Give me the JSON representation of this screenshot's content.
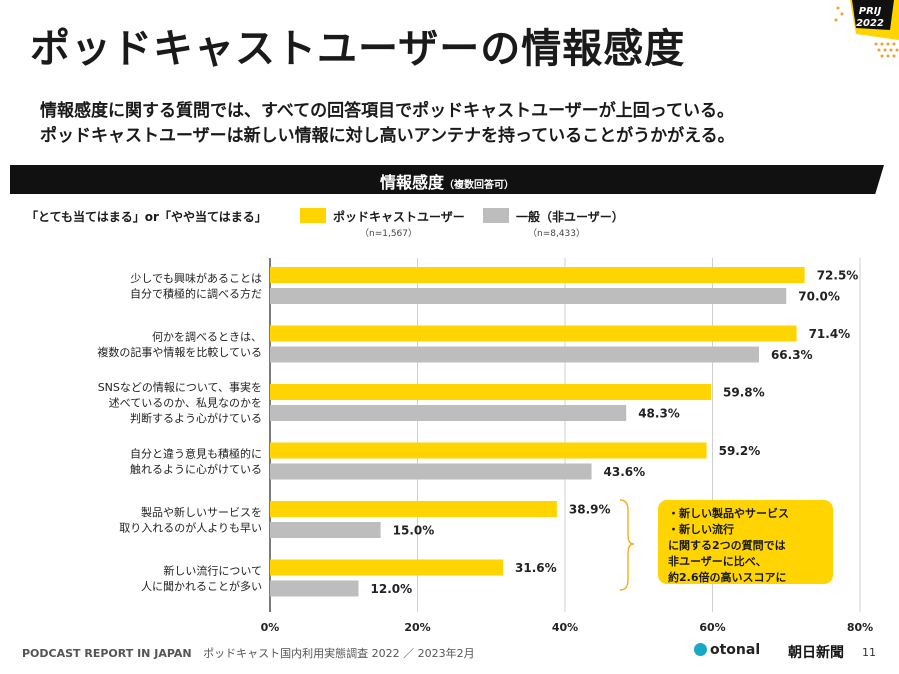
{
  "title": "ポッドキャストユーザーの情報感度",
  "subtitle_lines": [
    "情報感度に関する質問では、すべての回答項目でポッドキャストユーザーが上回っている。",
    "ポッドキャストユーザーは新しい情報に対し高いアンテナを持っていることがうかがえる。"
  ],
  "badge": {
    "line1": "PRIJ",
    "line2": "2022"
  },
  "banner": {
    "title": "情報感度",
    "note": "（複数回答可）"
  },
  "legend": {
    "condition": "「とても当てはまる」or「やや当てはまる」",
    "series": [
      {
        "name": "ポッドキャストユーザー",
        "n": "（n=1,567）",
        "color": "#ffd400"
      },
      {
        "name": "一般（非ユーザー）",
        "n": "（n=8,433）",
        "color": "#bdbdbd"
      }
    ]
  },
  "chart_data": {
    "type": "bar",
    "orientation": "horizontal",
    "categories": [
      [
        "少しでも興味があることは",
        "自分で積極的に調べる方だ"
      ],
      [
        "何かを調べるときは、",
        "複数の記事や情報を比較している"
      ],
      [
        "SNSなどの情報について、事実を",
        "述べているのか、私見なのかを",
        "判断するよう心がけている"
      ],
      [
        "自分と違う意見も積極的に",
        "触れるように心がけている"
      ],
      [
        "製品や新しいサービスを",
        "取り入れるのが人よりも早い"
      ],
      [
        "新しい流行について",
        "人に聞かれることが多い"
      ]
    ],
    "series": [
      {
        "name": "ポッドキャストユーザー",
        "values": [
          72.5,
          71.4,
          59.8,
          59.2,
          38.9,
          31.6
        ],
        "labels": [
          "72.5%",
          "71.4%",
          "59.8%",
          "59.2%",
          "38.9%",
          "31.6%"
        ],
        "color": "#ffd400"
      },
      {
        "name": "一般（非ユーザー）",
        "values": [
          70.0,
          66.3,
          48.3,
          43.6,
          15.0,
          12.0
        ],
        "labels": [
          "70.0%",
          "66.3%",
          "48.3%",
          "43.6%",
          "15.0%",
          "12.0%"
        ],
        "color": "#bdbdbd"
      }
    ],
    "xlim": [
      0,
      80
    ],
    "xticks": [
      0,
      20,
      40,
      60,
      80
    ],
    "xtick_labels": [
      "0%",
      "20%",
      "40%",
      "60%",
      "80%"
    ],
    "grid": true
  },
  "callout": {
    "lines": [
      "・新しい製品やサービス",
      "・新しい流行",
      "に関する2つの質問では",
      "非ユーザーに比べ、",
      "約2.6倍の高いスコアに"
    ]
  },
  "footer": {
    "report": "PODCAST REPORT IN JAPAN",
    "survey": "ポッドキャスト国内利用実態調査 2022 ／ 2023年2月",
    "logo1": "otonal",
    "logo2": "朝日新聞",
    "page": "11"
  }
}
